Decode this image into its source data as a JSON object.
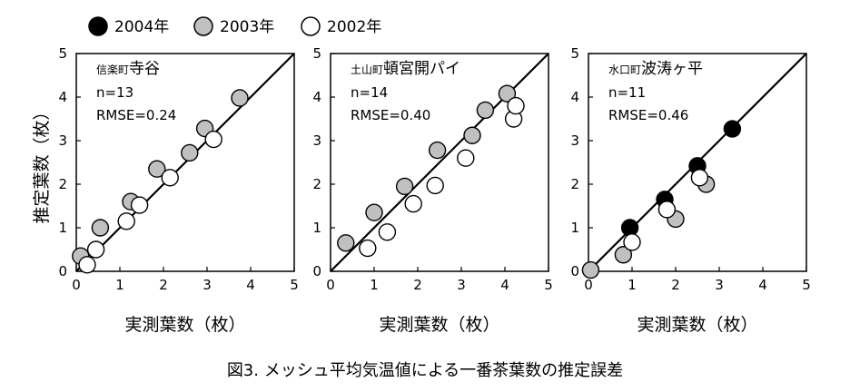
{
  "legend": [
    {
      "label": "2004年",
      "fill": "#000000"
    },
    {
      "label": "2003年",
      "fill": "#c0c0c0"
    },
    {
      "label": "2002年",
      "fill": "#ffffff"
    }
  ],
  "y_axis_title": "推定葉数（枚）",
  "caption": "図3. メッシュ平均気温値による一番茶葉数の推定誤差",
  "chart_data": [
    {
      "type": "scatter",
      "place_small": "信楽町",
      "place_big": "寺谷",
      "n_text": "n=13",
      "rmse_text": "RMSE=0.24",
      "xlabel": "実測葉数（枚）",
      "ylabel": "推定葉数（枚）",
      "xlim": [
        0,
        5
      ],
      "ylim": [
        0,
        5
      ],
      "xticks": [
        "0",
        "1",
        "2",
        "3",
        "4",
        "5"
      ],
      "yticks": [
        "0",
        "1",
        "2",
        "3",
        "4",
        "5"
      ],
      "reference_line": "1:1",
      "series": [
        {
          "name": "2003年",
          "color": "#c0c0c0",
          "points": [
            [
              0.1,
              0.35
            ],
            [
              0.55,
              1.0
            ],
            [
              1.25,
              1.6
            ],
            [
              1.85,
              2.35
            ],
            [
              2.6,
              2.72
            ],
            [
              2.95,
              3.28
            ],
            [
              3.75,
              3.98
            ]
          ]
        },
        {
          "name": "2002年",
          "color": "#ffffff",
          "points": [
            [
              0.25,
              0.15
            ],
            [
              0.45,
              0.5
            ],
            [
              1.15,
              1.15
            ],
            [
              1.45,
              1.52
            ],
            [
              2.15,
              2.15
            ],
            [
              3.15,
              3.03
            ]
          ]
        }
      ]
    },
    {
      "type": "scatter",
      "place_small": "土山町",
      "place_big": "頓宮開パイ",
      "n_text": "n=14",
      "rmse_text": "RMSE=0.40",
      "xlabel": "実測葉数（枚）",
      "ylabel": "",
      "xlim": [
        0,
        5
      ],
      "ylim": [
        0,
        5
      ],
      "xticks": [
        "0",
        "1",
        "2",
        "3",
        "4",
        "5"
      ],
      "yticks": [
        "0",
        "1",
        "2",
        "3",
        "4",
        "5"
      ],
      "reference_line": "1:1",
      "series": [
        {
          "name": "2003年",
          "color": "#c0c0c0",
          "points": [
            [
              0.35,
              0.65
            ],
            [
              1.0,
              1.35
            ],
            [
              1.7,
              1.95
            ],
            [
              2.45,
              2.78
            ],
            [
              3.25,
              3.12
            ],
            [
              3.55,
              3.7
            ],
            [
              4.05,
              4.08
            ]
          ]
        },
        {
          "name": "2002年",
          "color": "#ffffff",
          "points": [
            [
              0.85,
              0.53
            ],
            [
              1.3,
              0.9
            ],
            [
              1.9,
              1.55
            ],
            [
              2.4,
              1.97
            ],
            [
              3.1,
              2.6
            ],
            [
              4.2,
              3.5
            ],
            [
              4.25,
              3.8
            ]
          ]
        }
      ]
    },
    {
      "type": "scatter",
      "place_small": "水口町",
      "place_big": "波涛ヶ平",
      "n_text": "n=11",
      "rmse_text": "RMSE=0.46",
      "xlabel": "実測葉数（枚）",
      "ylabel": "",
      "xlim": [
        0,
        5
      ],
      "ylim": [
        0,
        5
      ],
      "xticks": [
        "0",
        "1",
        "2",
        "3",
        "4",
        "5"
      ],
      "yticks": [
        "0",
        "1",
        "2",
        "3",
        "4",
        "5"
      ],
      "reference_line": "1:1",
      "series": [
        {
          "name": "2004年",
          "color": "#000000",
          "points": [
            [
              0.95,
              1.0
            ],
            [
              1.75,
              1.65
            ],
            [
              2.5,
              2.42
            ],
            [
              3.3,
              3.27
            ]
          ]
        },
        {
          "name": "2003年",
          "color": "#c0c0c0",
          "points": [
            [
              0.05,
              0.03
            ],
            [
              0.8,
              0.38
            ],
            [
              2.0,
              1.2
            ],
            [
              2.7,
              2.0
            ]
          ]
        },
        {
          "name": "2002年",
          "color": "#ffffff",
          "points": [
            [
              1.0,
              0.67
            ],
            [
              1.8,
              1.42
            ],
            [
              2.55,
              2.15
            ]
          ]
        }
      ]
    }
  ]
}
